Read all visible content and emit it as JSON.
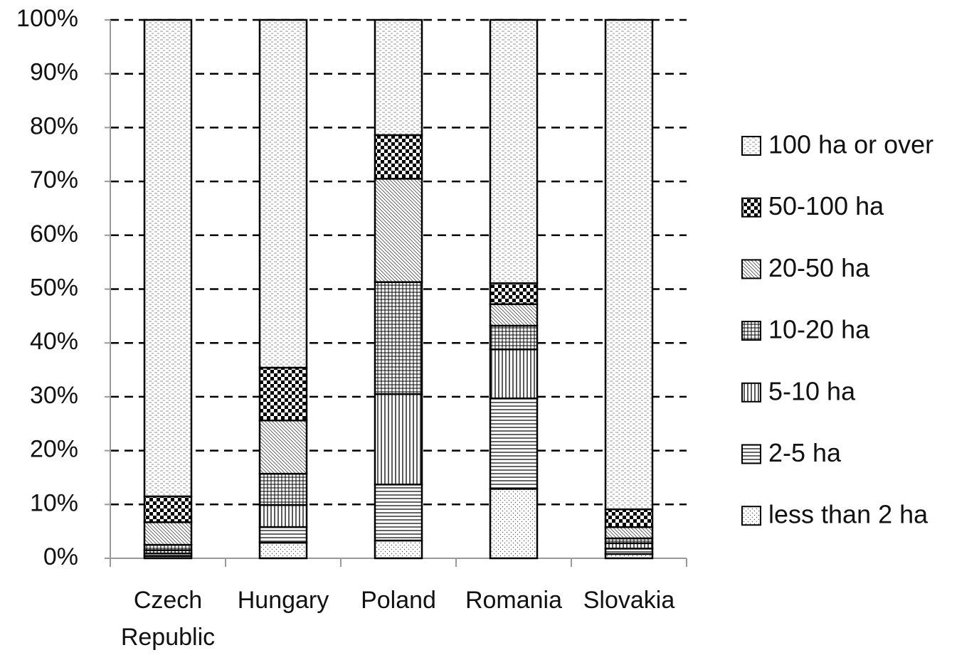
{
  "chart_data": {
    "type": "stacked-bar",
    "categories": [
      "Czech Republic",
      "Hungary",
      "Poland",
      "Romania",
      "Slovakia"
    ],
    "series": [
      {
        "name": "less than 2 ha",
        "values": [
          0.4,
          2.9,
          3.3,
          12.9,
          0.8
        ]
      },
      {
        "name": "2-5 ha",
        "values": [
          0.5,
          2.9,
          10.4,
          16.8,
          1.0
        ]
      },
      {
        "name": "5-10 ha",
        "values": [
          0.6,
          4.1,
          16.8,
          9.1,
          1.0
        ]
      },
      {
        "name": "10-20 ha",
        "values": [
          1.0,
          5.8,
          20.8,
          4.4,
          0.9
        ]
      },
      {
        "name": "20-50 ha",
        "values": [
          4.2,
          9.9,
          19.2,
          4.0,
          2.1
        ]
      },
      {
        "name": "50-100 ha",
        "values": [
          4.8,
          9.8,
          8.1,
          3.9,
          3.3
        ]
      },
      {
        "name": "100 ha or over",
        "values": [
          88.5,
          64.6,
          21.4,
          48.9,
          90.9
        ]
      }
    ],
    "ylim": [
      0,
      100
    ],
    "yticks": [
      {
        "value": 0,
        "label": "0%"
      },
      {
        "value": 10,
        "label": "10%"
      },
      {
        "value": 20,
        "label": "20%"
      },
      {
        "value": 30,
        "label": "30%"
      },
      {
        "value": 40,
        "label": "40%"
      },
      {
        "value": 50,
        "label": "50%"
      },
      {
        "value": 60,
        "label": "60%"
      },
      {
        "value": 70,
        "label": "70%"
      },
      {
        "value": 80,
        "label": "80%"
      },
      {
        "value": 90,
        "label": "90%"
      },
      {
        "value": 100,
        "label": "100%"
      }
    ],
    "grid": true,
    "legend": "right"
  }
}
